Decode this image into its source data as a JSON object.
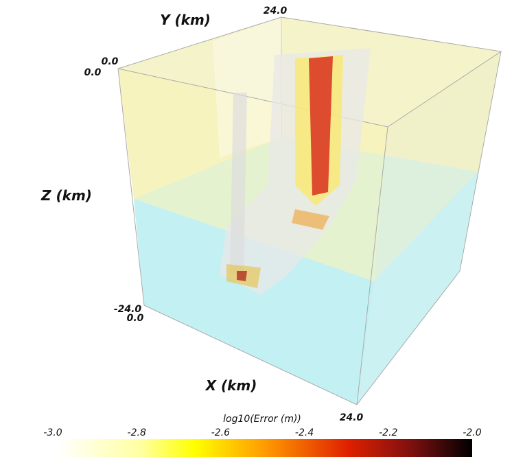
{
  "axes": {
    "y": {
      "label": "Y (km)",
      "ticks": [
        "0.0",
        "24.0"
      ]
    },
    "z": {
      "label": "Z (km)",
      "ticks": [
        "0.0",
        "-24.0"
      ]
    },
    "x": {
      "label": "X (km)",
      "ticks": [
        "0.0",
        "24.0"
      ]
    }
  },
  "colorbar": {
    "title": "log10(Error (m))",
    "ticks": [
      "-3.0",
      "-2.8",
      "-2.6",
      "-2.4",
      "-2.2",
      "-2.0"
    ]
  }
}
